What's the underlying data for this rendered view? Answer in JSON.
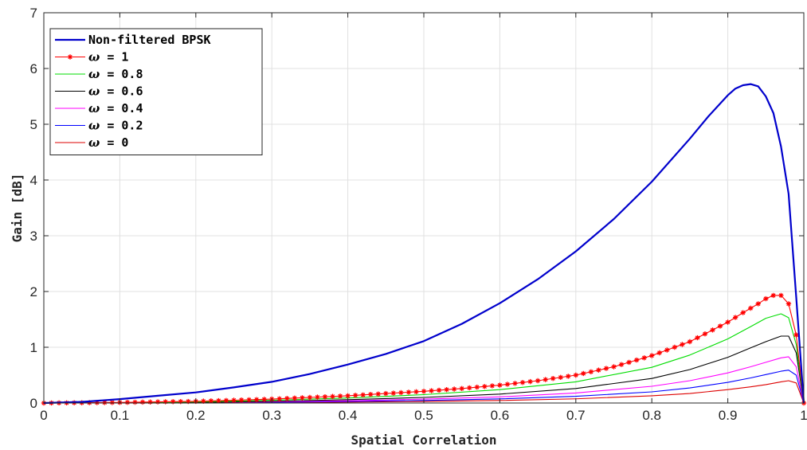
{
  "chart_data": {
    "type": "line",
    "xlabel": "Spatial Correlation",
    "ylabel": "Gain [dB]",
    "xlim": [
      0,
      1
    ],
    "ylim": [
      0,
      7
    ],
    "x_ticks": [
      "0",
      "0.1",
      "0.2",
      "0.3",
      "0.4",
      "0.5",
      "0.6",
      "0.7",
      "0.8",
      "0.9",
      "1"
    ],
    "y_ticks": [
      "0",
      "1",
      "2",
      "3",
      "4",
      "5",
      "6",
      "7"
    ],
    "grid": true,
    "legend_position": "top-left",
    "series": [
      {
        "name": "Non-filtered BPSK",
        "color": "#0000cc",
        "marker": "none",
        "x": [
          0,
          0.05,
          0.1,
          0.15,
          0.2,
          0.25,
          0.3,
          0.35,
          0.4,
          0.45,
          0.5,
          0.55,
          0.6,
          0.65,
          0.7,
          0.75,
          0.8,
          0.85,
          0.875,
          0.9,
          0.91,
          0.92,
          0.93,
          0.94,
          0.95,
          0.96,
          0.97,
          0.98,
          0.99,
          1.0
        ],
        "y": [
          0,
          0.02,
          0.07,
          0.13,
          0.19,
          0.28,
          0.38,
          0.52,
          0.69,
          0.88,
          1.11,
          1.42,
          1.79,
          2.22,
          2.72,
          3.3,
          3.97,
          4.74,
          5.15,
          5.52,
          5.64,
          5.7,
          5.72,
          5.68,
          5.5,
          5.2,
          4.6,
          3.75,
          1.9,
          0
        ]
      },
      {
        "name": "ω = 1",
        "color": "#ff0000",
        "marker": "asterisk",
        "x": [
          0,
          0.05,
          0.1,
          0.15,
          0.2,
          0.25,
          0.3,
          0.35,
          0.4,
          0.45,
          0.5,
          0.55,
          0.6,
          0.65,
          0.7,
          0.75,
          0.8,
          0.85,
          0.9,
          0.92,
          0.94,
          0.95,
          0.96,
          0.97,
          0.98,
          0.99,
          1.0
        ],
        "y": [
          0,
          0.005,
          0.01,
          0.02,
          0.03,
          0.05,
          0.07,
          0.1,
          0.13,
          0.17,
          0.21,
          0.26,
          0.32,
          0.4,
          0.5,
          0.65,
          0.85,
          1.1,
          1.45,
          1.62,
          1.78,
          1.87,
          1.93,
          1.93,
          1.78,
          1.22,
          0
        ]
      },
      {
        "name": "ω = 0.8",
        "color": "#00dd00",
        "marker": "none",
        "x": [
          0,
          0.1,
          0.2,
          0.3,
          0.4,
          0.5,
          0.6,
          0.7,
          0.8,
          0.85,
          0.9,
          0.93,
          0.95,
          0.97,
          0.98,
          0.99,
          1.0
        ],
        "y": [
          0,
          0.005,
          0.02,
          0.05,
          0.09,
          0.15,
          0.24,
          0.38,
          0.64,
          0.86,
          1.15,
          1.37,
          1.52,
          1.6,
          1.53,
          1.05,
          0
        ]
      },
      {
        "name": "ω = 0.6",
        "color": "#000000",
        "marker": "none",
        "x": [
          0,
          0.1,
          0.2,
          0.3,
          0.4,
          0.5,
          0.6,
          0.7,
          0.8,
          0.85,
          0.9,
          0.93,
          0.95,
          0.97,
          0.98,
          0.99,
          1.0
        ],
        "y": [
          0,
          0.003,
          0.01,
          0.03,
          0.06,
          0.1,
          0.16,
          0.26,
          0.44,
          0.6,
          0.82,
          0.99,
          1.1,
          1.2,
          1.2,
          0.9,
          0
        ]
      },
      {
        "name": "ω = 0.4",
        "color": "#ff00ff",
        "marker": "none",
        "x": [
          0,
          0.1,
          0.2,
          0.3,
          0.4,
          0.5,
          0.6,
          0.7,
          0.8,
          0.85,
          0.9,
          0.93,
          0.95,
          0.97,
          0.98,
          0.99,
          1.0
        ],
        "y": [
          0,
          0.002,
          0.007,
          0.02,
          0.04,
          0.07,
          0.11,
          0.18,
          0.3,
          0.4,
          0.54,
          0.65,
          0.73,
          0.81,
          0.83,
          0.65,
          0
        ]
      },
      {
        "name": "ω = 0.2",
        "color": "#0000ff",
        "marker": "none",
        "x": [
          0,
          0.1,
          0.2,
          0.3,
          0.4,
          0.5,
          0.6,
          0.7,
          0.8,
          0.85,
          0.9,
          0.93,
          0.95,
          0.97,
          0.98,
          0.99,
          1.0
        ],
        "y": [
          0,
          0.001,
          0.005,
          0.013,
          0.027,
          0.046,
          0.074,
          0.12,
          0.2,
          0.27,
          0.37,
          0.45,
          0.51,
          0.57,
          0.59,
          0.5,
          0
        ]
      },
      {
        "name": "ω = 0",
        "color": "#dd0000",
        "marker": "none",
        "x": [
          0,
          0.1,
          0.2,
          0.3,
          0.4,
          0.5,
          0.6,
          0.7,
          0.8,
          0.85,
          0.9,
          0.93,
          0.95,
          0.97,
          0.98,
          0.99,
          1.0
        ],
        "y": [
          0,
          0.001,
          0.003,
          0.008,
          0.016,
          0.028,
          0.045,
          0.075,
          0.13,
          0.17,
          0.24,
          0.29,
          0.33,
          0.38,
          0.4,
          0.36,
          0
        ]
      }
    ]
  }
}
